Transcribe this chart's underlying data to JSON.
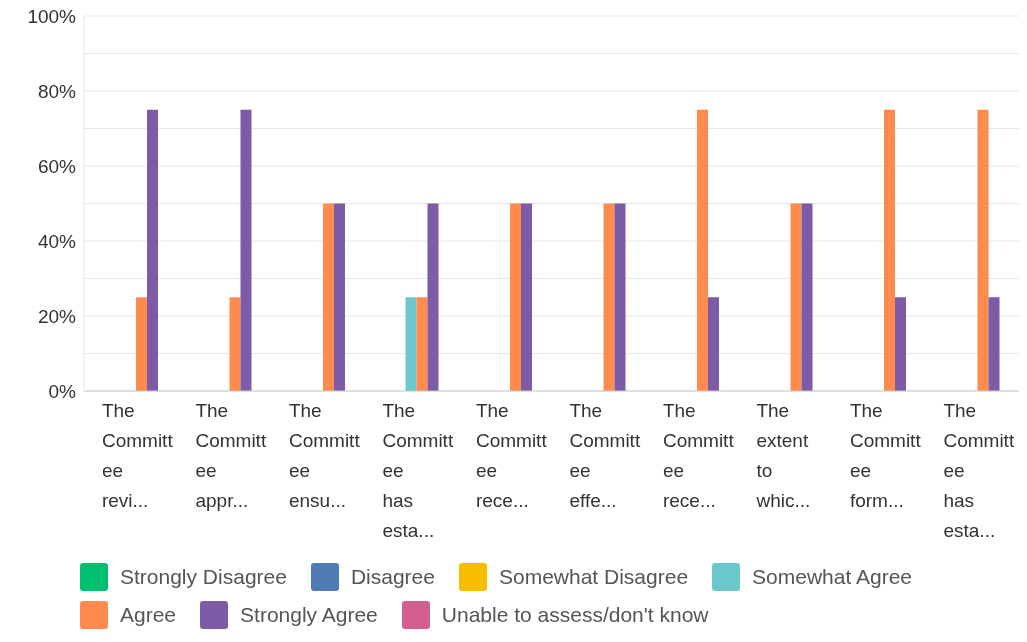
{
  "chart_data": {
    "type": "bar",
    "categories": [
      "The Committee revi...",
      "The Committee appr...",
      "The Committee ensu...",
      "The Committee has esta...",
      "The Committee rece...",
      "The Committee effe...",
      "The Committee rece...",
      "The extent to whic...",
      "The Committee form...",
      "The Committee has esta..."
    ],
    "series": [
      {
        "name": "Strongly Disagree",
        "color": "#00bf6f",
        "values": [
          0,
          0,
          0,
          0,
          0,
          0,
          0,
          0,
          0,
          0
        ]
      },
      {
        "name": "Disagree",
        "color": "#507cb6",
        "values": [
          0,
          0,
          0,
          0,
          0,
          0,
          0,
          0,
          0,
          0
        ]
      },
      {
        "name": "Somewhat Disagree",
        "color": "#f9be00",
        "values": [
          0,
          0,
          0,
          0,
          0,
          0,
          0,
          0,
          0,
          0
        ]
      },
      {
        "name": "Somewhat Agree",
        "color": "#6bc8cd",
        "values": [
          0,
          0,
          0,
          25,
          0,
          0,
          0,
          0,
          0,
          0
        ]
      },
      {
        "name": "Agree",
        "color": "#ff8b4f",
        "values": [
          25,
          25,
          50,
          25,
          50,
          50,
          75,
          50,
          75,
          75
        ]
      },
      {
        "name": "Strongly Agree",
        "color": "#7d5ba6",
        "values": [
          75,
          75,
          50,
          50,
          50,
          50,
          25,
          50,
          25,
          25
        ]
      },
      {
        "name": "Unable to assess/don't know",
        "color": "#d25f90",
        "values": [
          0,
          0,
          0,
          0,
          0,
          0,
          0,
          0,
          0,
          0
        ]
      }
    ],
    "ylim": [
      0,
      100
    ],
    "yticks": [
      {
        "value": 0,
        "label": "0%"
      },
      {
        "value": 10,
        "label": null
      },
      {
        "value": 20,
        "label": "20%"
      },
      {
        "value": 30,
        "label": null
      },
      {
        "value": 40,
        "label": "40%"
      },
      {
        "value": 50,
        "label": null
      },
      {
        "value": 60,
        "label": "60%"
      },
      {
        "value": 70,
        "label": null
      },
      {
        "value": 80,
        "label": "80%"
      },
      {
        "value": 90,
        "label": null
      },
      {
        "value": 100,
        "label": "100%"
      }
    ],
    "grid": "y",
    "legend": "bottom"
  }
}
